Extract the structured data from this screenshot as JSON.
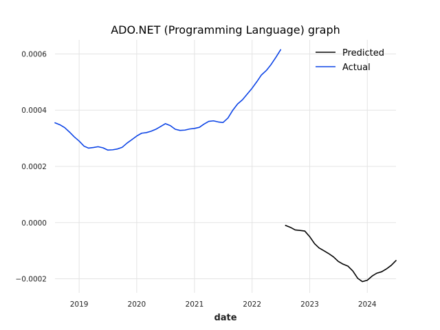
{
  "chart_data": {
    "type": "line",
    "title": "ADO.NET (Programming Language) graph",
    "xlabel": "date",
    "ylabel": "",
    "x_ticks": [
      "2019",
      "2020",
      "2021",
      "2022",
      "2023",
      "2024"
    ],
    "y_ticks": [
      "−0.0002",
      "0.0000",
      "0.0002",
      "0.0004",
      "0.0006"
    ],
    "y_tick_values": [
      -0.0002,
      0.0,
      0.0002,
      0.0004,
      0.0006
    ],
    "xlim": [
      "2018-08-01",
      "2024-07-01"
    ],
    "ylim": [
      -0.00025,
      0.00065
    ],
    "grid": true,
    "legend_position": "top-right",
    "series": [
      {
        "name": "Predicted",
        "color": "#000000",
        "x": [
          "2022-08-01",
          "2022-09-01",
          "2022-10-01",
          "2022-11-01",
          "2022-12-01",
          "2023-01-01",
          "2023-02-01",
          "2023-03-01",
          "2023-04-01",
          "2023-05-01",
          "2023-06-01",
          "2023-07-01",
          "2023-08-01",
          "2023-09-01",
          "2023-10-01",
          "2023-11-01",
          "2023-12-01",
          "2024-01-01",
          "2024-02-01",
          "2024-03-01",
          "2024-04-01",
          "2024-05-01",
          "2024-06-01",
          "2024-07-01"
        ],
        "y": [
          -1e-05,
          -1.7e-05,
          -2.6e-05,
          -2.8e-05,
          -3e-05,
          -5e-05,
          -7.5e-05,
          -9e-05,
          -0.0001,
          -0.00011,
          -0.000122,
          -0.000138,
          -0.000148,
          -0.000155,
          -0.000172,
          -0.000198,
          -0.00021,
          -0.000205,
          -0.00019,
          -0.00018,
          -0.000175,
          -0.000165,
          -0.000152,
          -0.000135
        ]
      },
      {
        "name": "Actual",
        "color": "#0b43e6",
        "x": [
          "2018-08-01",
          "2018-09-01",
          "2018-10-01",
          "2018-11-01",
          "2018-12-01",
          "2019-01-01",
          "2019-02-01",
          "2019-03-01",
          "2019-04-01",
          "2019-05-01",
          "2019-06-01",
          "2019-07-01",
          "2019-08-01",
          "2019-09-01",
          "2019-10-01",
          "2019-11-01",
          "2019-12-01",
          "2020-01-01",
          "2020-02-01",
          "2020-03-01",
          "2020-04-01",
          "2020-05-01",
          "2020-06-01",
          "2020-07-01",
          "2020-08-01",
          "2020-09-01",
          "2020-10-01",
          "2020-11-01",
          "2020-12-01",
          "2021-01-01",
          "2021-02-01",
          "2021-03-01",
          "2021-04-01",
          "2021-05-01",
          "2021-06-01",
          "2021-07-01",
          "2021-08-01",
          "2021-09-01",
          "2021-10-01",
          "2021-11-01",
          "2021-12-01",
          "2022-01-01",
          "2022-02-01",
          "2022-03-01",
          "2022-04-01",
          "2022-05-01",
          "2022-06-01",
          "2022-07-01"
        ],
        "y": [
          0.000355,
          0.000348,
          0.000338,
          0.000322,
          0.000305,
          0.00029,
          0.000272,
          0.000265,
          0.000267,
          0.00027,
          0.000266,
          0.000258,
          0.000259,
          0.000262,
          0.000268,
          0.000283,
          0.000295,
          0.000308,
          0.000318,
          0.00032,
          0.000325,
          0.000332,
          0.000342,
          0.000352,
          0.000345,
          0.000332,
          0.000328,
          0.000329,
          0.000333,
          0.000335,
          0.000339,
          0.00035,
          0.00036,
          0.000362,
          0.000358,
          0.000356,
          0.000372,
          0.0004,
          0.000422,
          0.000437,
          0.000457,
          0.000478,
          0.000502,
          0.000525,
          0.000541,
          0.000562,
          0.000588,
          0.000615
        ]
      }
    ]
  }
}
